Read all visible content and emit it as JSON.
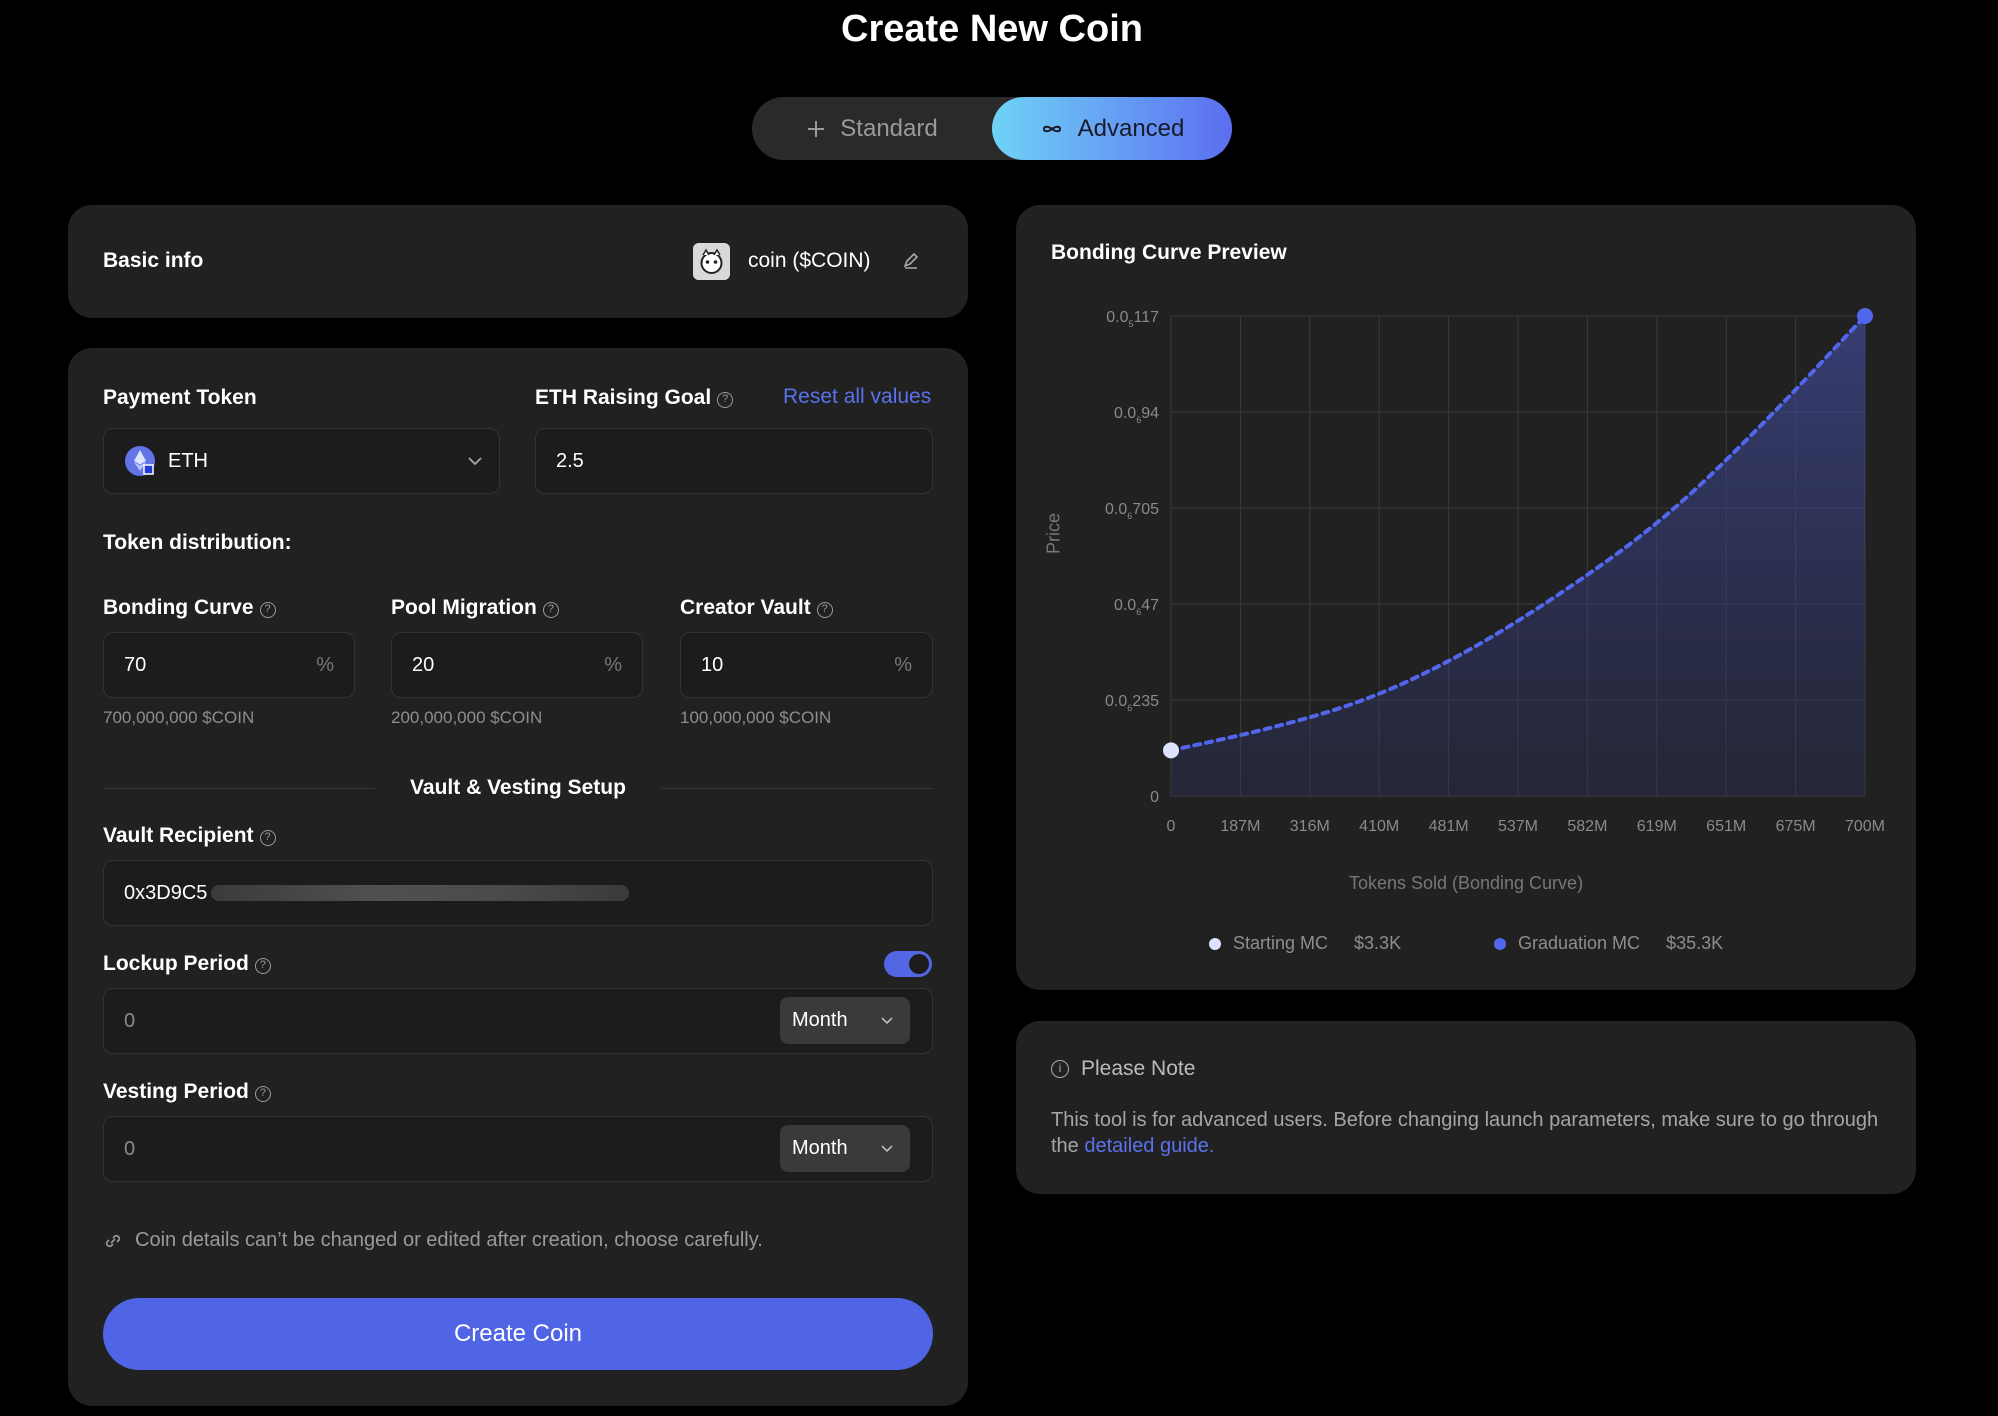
{
  "page_title": "Create New Coin",
  "mode_switch": {
    "standard_label": "Standard",
    "advanced_label": "Advanced",
    "selected": "Advanced"
  },
  "basic_info": {
    "label": "Basic info",
    "coin_display": "coin ($COIN)"
  },
  "payment_token": {
    "label": "Payment Token",
    "value": "ETH"
  },
  "raising_goal": {
    "label": "ETH Raising Goal",
    "value": "2.5",
    "reset_label": "Reset all values"
  },
  "distribution": {
    "label": "Token distribution:",
    "bonding_curve": {
      "label": "Bonding Curve",
      "value": "70",
      "unit": "%",
      "tokens": "700,000,000 $COIN"
    },
    "pool_migration": {
      "label": "Pool Migration",
      "value": "20",
      "unit": "%",
      "tokens": "200,000,000 $COIN"
    },
    "creator_vault": {
      "label": "Creator Vault",
      "value": "10",
      "unit": "%",
      "tokens": "100,000,000 $COIN"
    }
  },
  "vault_setup": {
    "heading": "Vault & Vesting Setup",
    "recipient_label": "Vault Recipient",
    "recipient_value": "0x3D9C5",
    "lockup_label": "Lockup Period",
    "lockup_enabled": true,
    "lockup_value": "0",
    "lockup_unit": "Month",
    "vesting_label": "Vesting Period",
    "vesting_value": "0",
    "vesting_unit": "Month"
  },
  "warning": "Coin details can’t be changed or edited after creation, choose carefully.",
  "create_button": "Create Coin",
  "preview": {
    "title": "Bonding Curve Preview"
  },
  "chart_data": {
    "type": "area",
    "ylabel": "Price",
    "xlabel": "Tokens Sold (Bonding Curve)",
    "y_ticks": [
      {
        "lead": "0.0",
        "sub": "5",
        "tail": "117"
      },
      {
        "lead": "0.0",
        "sub": "6",
        "tail": "94"
      },
      {
        "lead": "0.0",
        "sub": "6",
        "tail": "705"
      },
      {
        "lead": "0.0",
        "sub": "6",
        "tail": "47"
      },
      {
        "lead": "0.0",
        "sub": "6",
        "tail": "235"
      },
      {
        "lead": "0",
        "sub": "",
        "tail": ""
      }
    ],
    "x_ticks": [
      "0",
      "187M",
      "316M",
      "410M",
      "481M",
      "537M",
      "582M",
      "619M",
      "651M",
      "675M",
      "700M"
    ],
    "curve_y_fraction": {
      "x": [
        0,
        100,
        200,
        300,
        400,
        500,
        600,
        700
      ],
      "y": [
        0.095,
        0.14,
        0.2,
        0.3,
        0.43,
        0.58,
        0.78,
        1.0
      ]
    },
    "legend": [
      {
        "name": "Starting MC",
        "value": "$3.3K",
        "color": "#dde3ff"
      },
      {
        "name": "Graduation MC",
        "value": "$35.3K",
        "color": "#5266ec"
      }
    ],
    "grid": true
  },
  "note": {
    "title": "Please Note",
    "body": "This tool is for advanced users. Before changing launch parameters, make sure to go through the",
    "link": "detailed guide."
  }
}
